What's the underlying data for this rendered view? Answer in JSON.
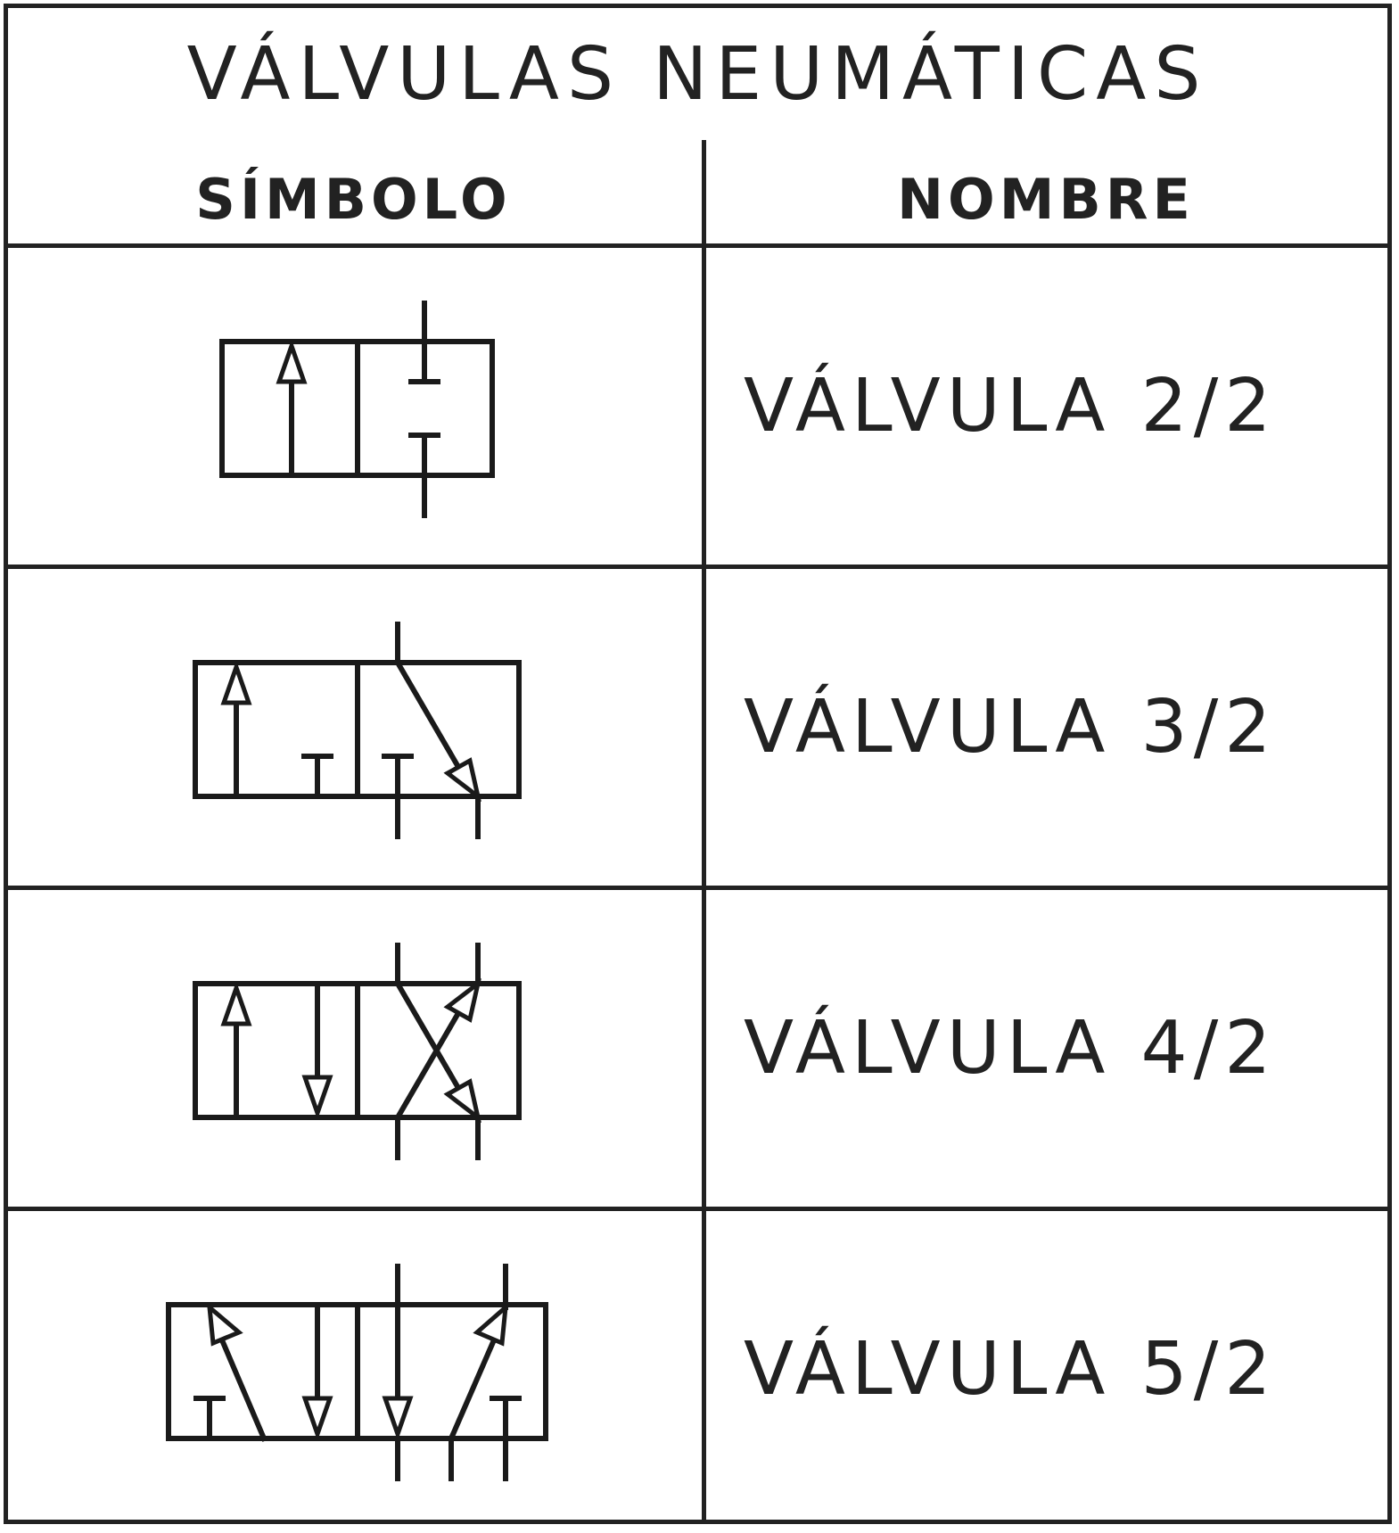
{
  "title": "VÁLVULAS NEUMÁTICAS",
  "headers": {
    "symbol": "SÍMBOLO",
    "name": "NOMBRE"
  },
  "rows": [
    {
      "symbol_icon": "valve-2-2-icon",
      "name": "VÁLVULA 2/2"
    },
    {
      "symbol_icon": "valve-3-2-icon",
      "name": "VÁLVULA 3/2"
    },
    {
      "symbol_icon": "valve-4-2-icon",
      "name": "VÁLVULA 4/2"
    },
    {
      "symbol_icon": "valve-5-2-icon",
      "name": "VÁLVULA 5/2"
    }
  ]
}
